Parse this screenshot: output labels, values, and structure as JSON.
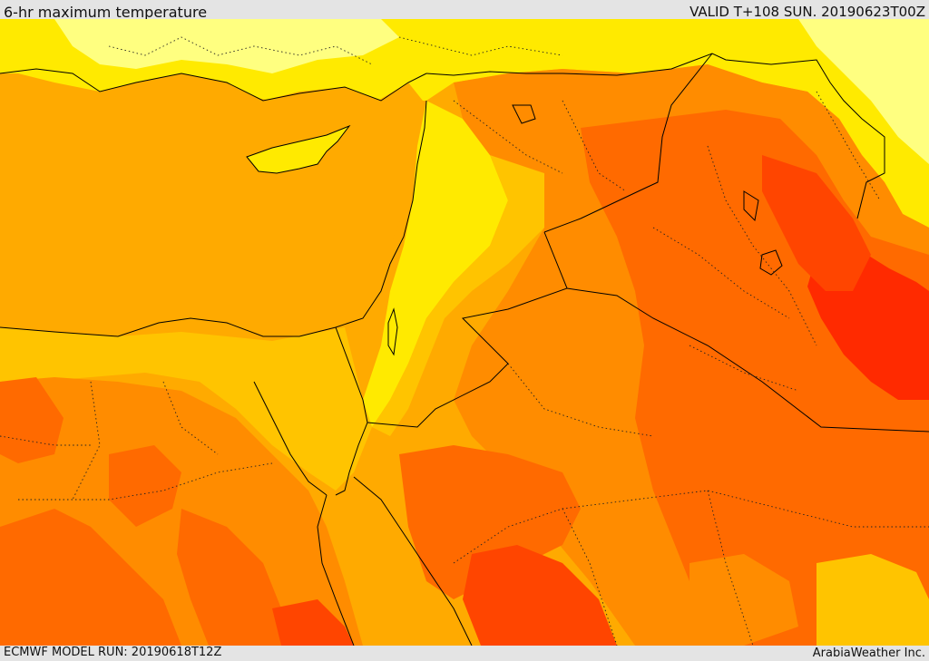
{
  "header": {
    "title": "6-hr maximum temperature",
    "valid": "VALID T+108 SUN. 20190623T00Z"
  },
  "footer": {
    "model_run": "ECMWF MODEL RUN: 20190618T12Z",
    "credit": "ArabiaWeather Inc."
  },
  "palette": {
    "light_yellow": "#ffff80",
    "yellow": "#ffea00",
    "amber": "#ffc400",
    "light_orange": "#ffaa00",
    "orange": "#ff8c00",
    "dark_orange": "#ff6a00",
    "red_orange": "#ff4500",
    "red": "#ff2a00",
    "border": "#000000"
  }
}
